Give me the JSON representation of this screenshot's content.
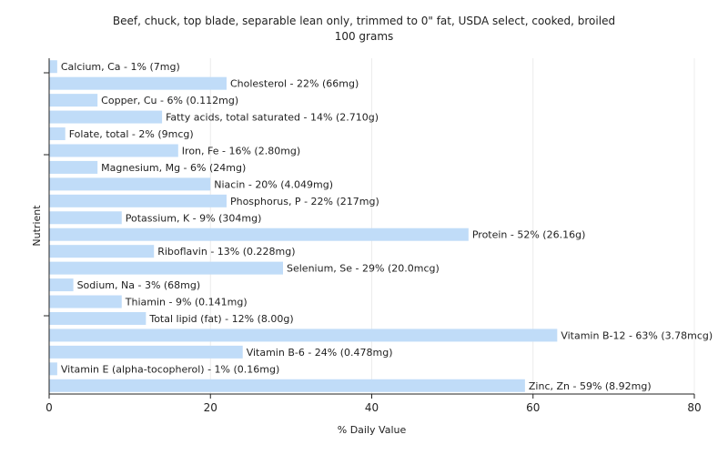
{
  "chart_data": {
    "type": "bar",
    "orientation": "horizontal",
    "title": "Beef, chuck, top blade, separable lean only, trimmed to 0\" fat, USDA select, cooked, broiled",
    "subtitle": "100 grams",
    "xlabel": "% Daily Value",
    "ylabel": "Nutrient",
    "xlim": [
      0,
      80
    ],
    "xticks": [
      0,
      20,
      40,
      60,
      80
    ],
    "grid": true,
    "bar_color": "#c0dcf8",
    "categories": [
      "Calcium, Ca",
      "Cholesterol",
      "Copper, Cu",
      "Fatty acids, total saturated",
      "Folate, total",
      "Iron, Fe",
      "Magnesium, Mg",
      "Niacin",
      "Phosphorus, P",
      "Potassium, K",
      "Protein",
      "Riboflavin",
      "Selenium, Se",
      "Sodium, Na",
      "Thiamin",
      "Total lipid (fat)",
      "Vitamin B-12",
      "Vitamin B-6",
      "Vitamin E (alpha-tocopherol)",
      "Zinc, Zn"
    ],
    "values": [
      1,
      22,
      6,
      14,
      2,
      16,
      6,
      20,
      22,
      9,
      52,
      13,
      29,
      3,
      9,
      12,
      63,
      24,
      1,
      59
    ],
    "labels": [
      "Calcium, Ca - 1% (7mg)",
      "Cholesterol - 22% (66mg)",
      "Copper, Cu - 6% (0.112mg)",
      "Fatty acids, total saturated - 14% (2.710g)",
      "Folate, total - 2% (9mcg)",
      "Iron, Fe - 16% (2.80mg)",
      "Magnesium, Mg - 6% (24mg)",
      "Niacin - 20% (4.049mg)",
      "Phosphorus, P - 22% (217mg)",
      "Potassium, K - 9% (304mg)",
      "Protein - 52% (26.16g)",
      "Riboflavin - 13% (0.228mg)",
      "Selenium, Se - 29% (20.0mcg)",
      "Sodium, Na - 3% (68mg)",
      "Thiamin - 9% (0.141mg)",
      "Total lipid (fat) - 12% (8.00g)",
      "Vitamin B-12 - 63% (3.78mcg)",
      "Vitamin B-6 - 24% (0.478mg)",
      "Vitamin E (alpha-tocopherol) - 1% (0.16mg)",
      "Zinc, Zn - 59% (8.92mg)"
    ]
  }
}
